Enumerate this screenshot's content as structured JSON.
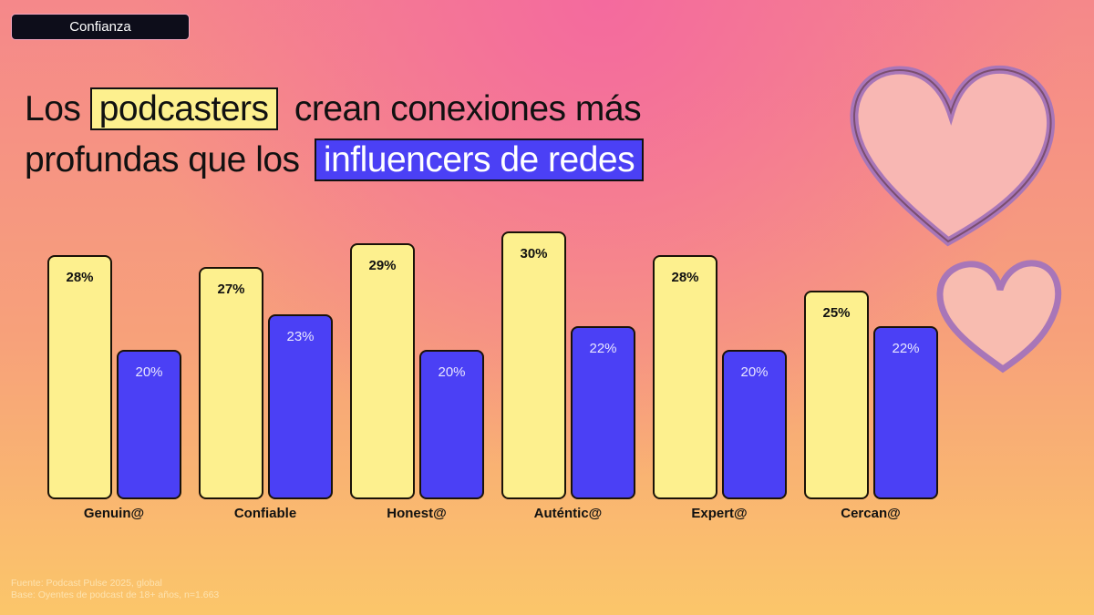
{
  "badge": "Confianza",
  "title": {
    "pre": "Los",
    "hl1": "podcasters",
    "mid": "crean conexiones más",
    "line2": "profundas que los",
    "hl2": "influencers de redes"
  },
  "footer": {
    "source": "Fuente: Podcast Pulse 2025, global",
    "base": "Base: Oyentes de podcast de 18+ años, n=1.663"
  },
  "chart_data": {
    "type": "bar",
    "title": "Los podcasters crean conexiones más profundas que los influencers de redes",
    "categories": [
      "Genuin@",
      "Confiable",
      "Honest@",
      "Auténtic@",
      "Expert@",
      "Cercan@"
    ],
    "series": [
      {
        "name": "podcasters",
        "color": "#fdf08e",
        "values": [
          28,
          27,
          29,
          30,
          28,
          25
        ]
      },
      {
        "name": "influencers de redes",
        "color": "#4b40f5",
        "values": [
          20,
          23,
          20,
          22,
          20,
          22
        ]
      }
    ],
    "ylim": [
      8,
      31
    ],
    "grid": false,
    "legend": "none"
  }
}
